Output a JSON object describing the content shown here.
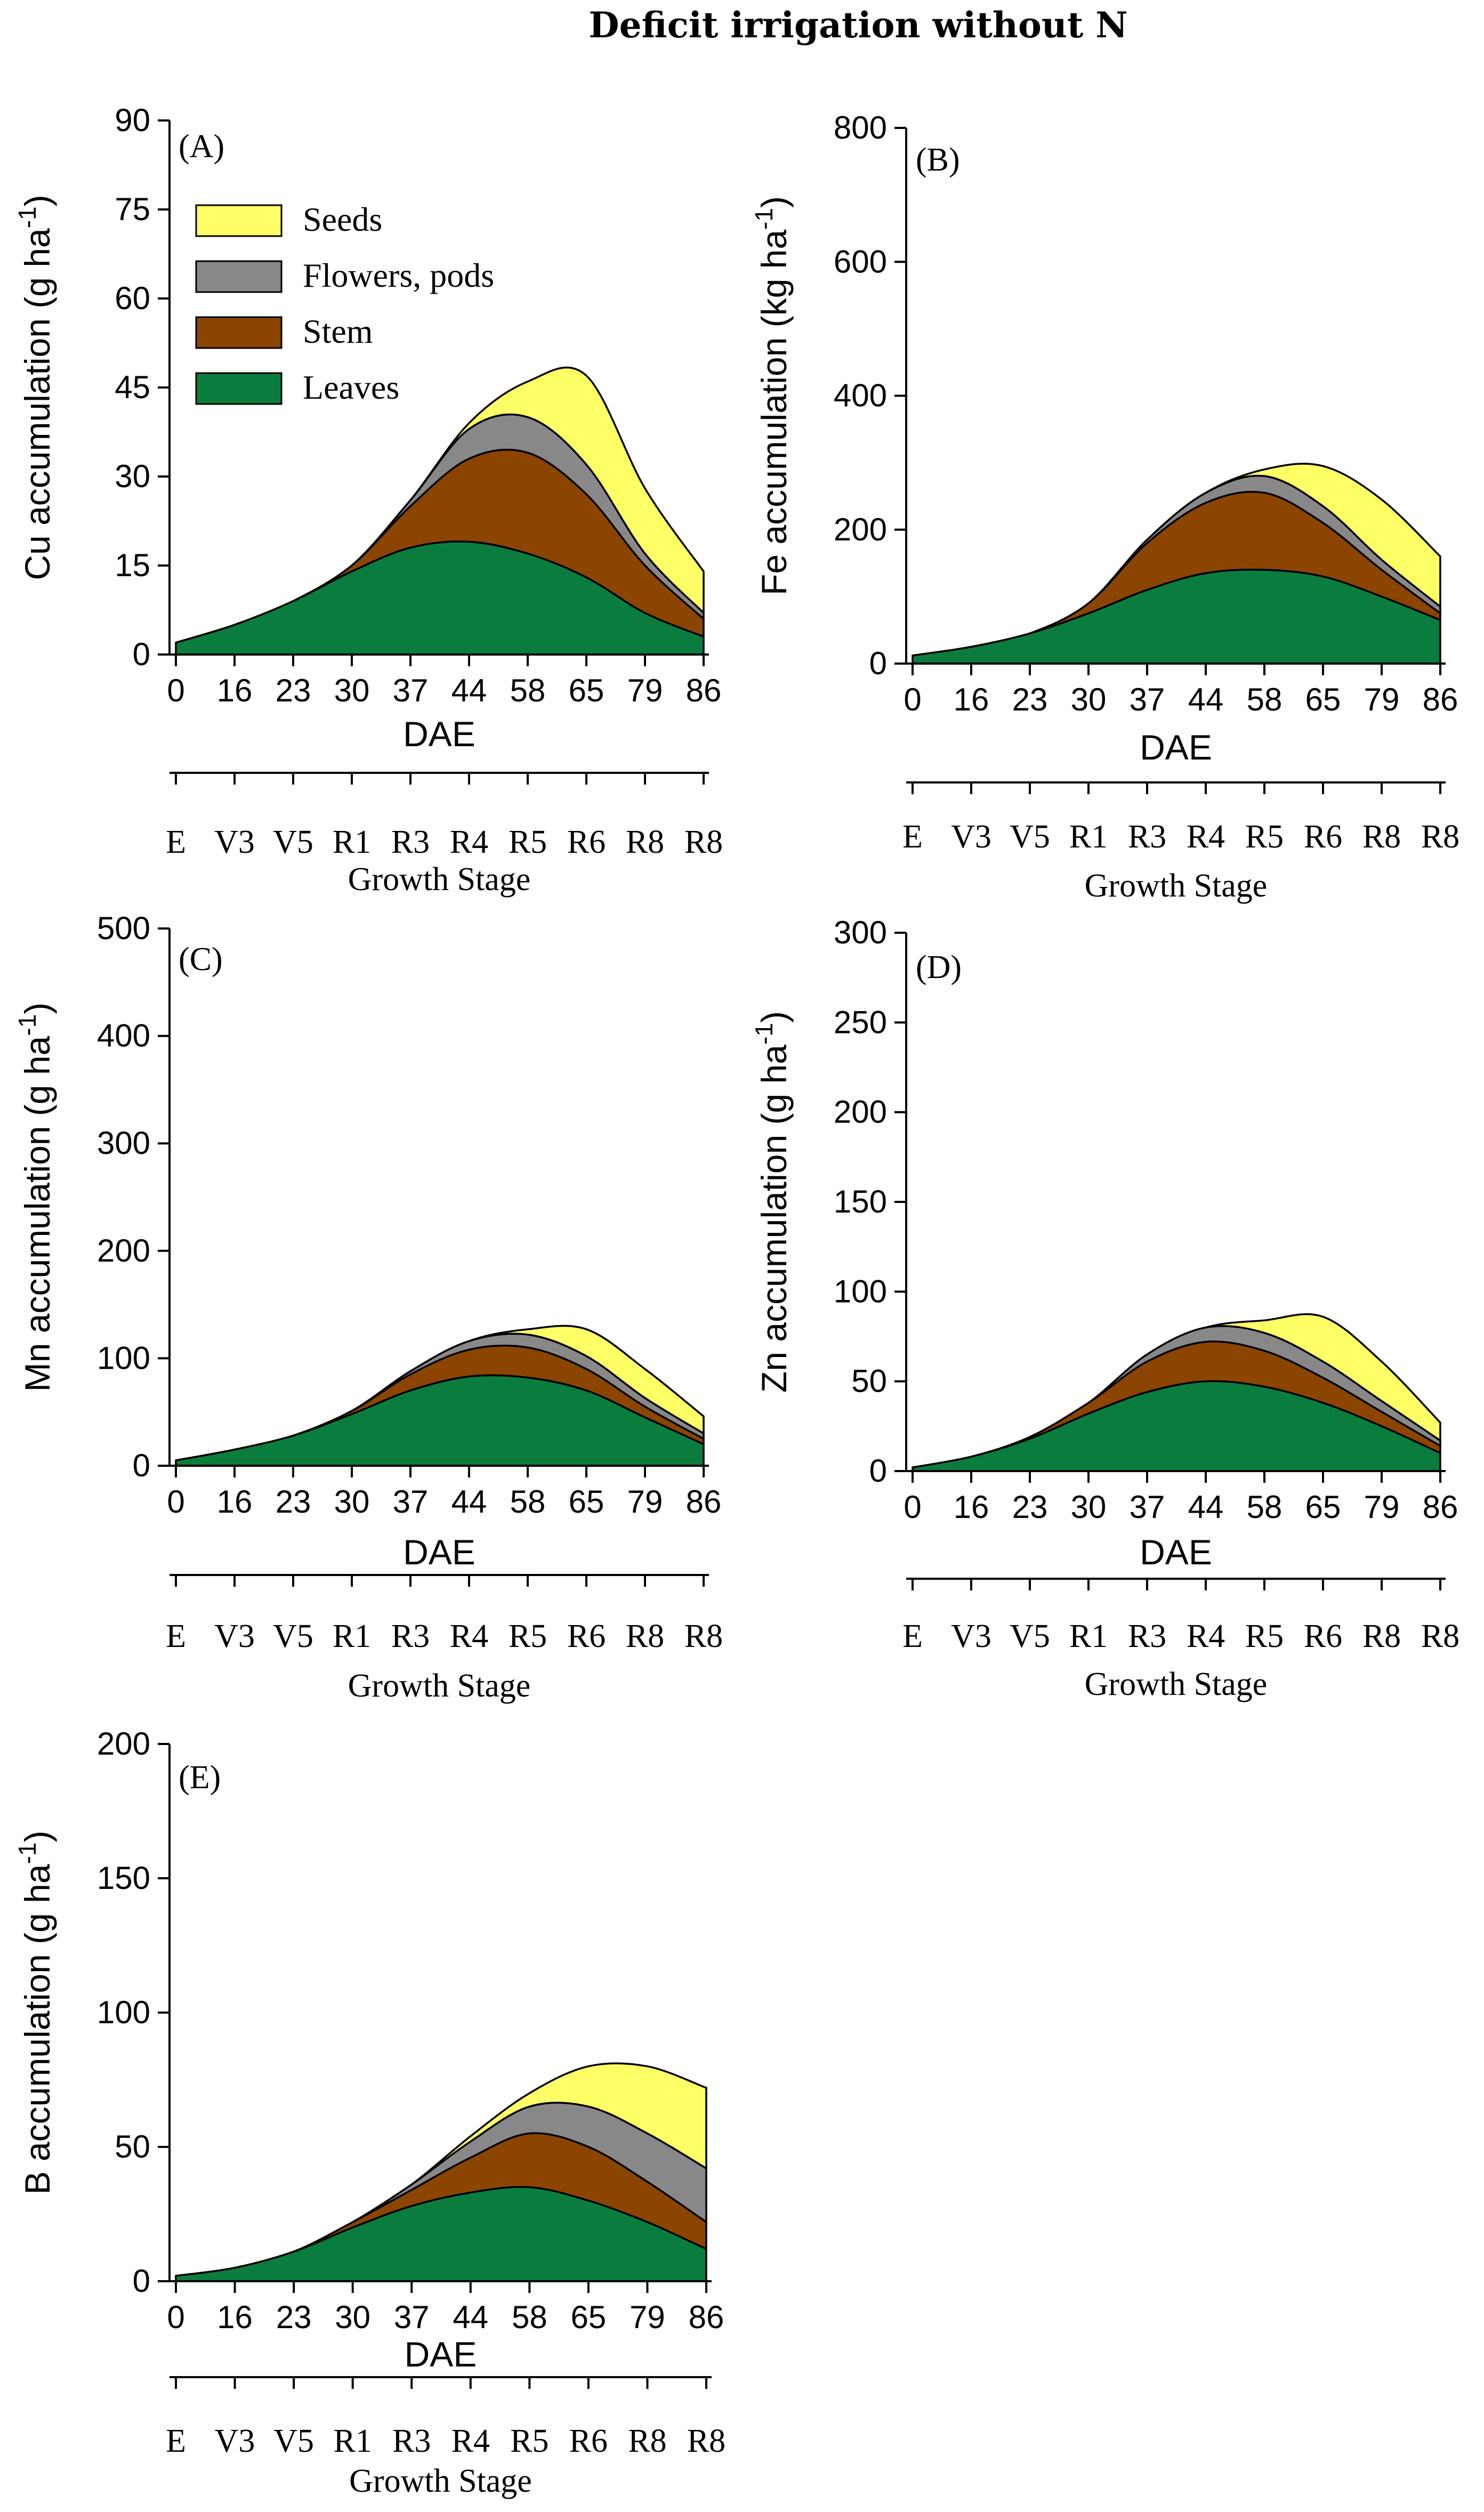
{
  "title": "Deficit irrigation without N",
  "colors": {
    "Seeds": "#ffff66",
    "Flowers, pods": "#888888",
    "Stem": "#8b4500",
    "Leaves": "#0a7d3e"
  },
  "legend": [
    "Seeds",
    "Flowers, pods",
    "Stem",
    "Leaves"
  ],
  "dae_labels": [
    "0",
    "16",
    "23",
    "30",
    "37",
    "44",
    "58",
    "65",
    "79",
    "86"
  ],
  "stage_labels": [
    "E",
    "V3",
    "V5",
    "R1",
    "R3",
    "R4",
    "R5",
    "R6",
    "R8",
    "R8"
  ],
  "xlabel": "DAE",
  "stage_axis_label": "Growth Stage",
  "chart_data": [
    {
      "id": "A",
      "panel_label": "(A)",
      "type": "area",
      "ylabel_main": "Cu accumulation (g ha",
      "ylabel_sup": "-1",
      "ylabel_close": ")",
      "ylim": [
        0,
        90
      ],
      "yticks": [
        0,
        15,
        30,
        45,
        60,
        75,
        90
      ],
      "x": [
        0,
        1,
        2,
        3,
        4,
        5,
        6,
        7,
        8,
        9
      ],
      "series": [
        {
          "name": "Leaves",
          "values": [
            2,
            5,
            9,
            14,
            18,
            19,
            17,
            13,
            7,
            3
          ]
        },
        {
          "name": "Stem",
          "values": [
            0,
            0,
            0,
            1,
            7,
            14,
            17,
            14,
            8,
            3
          ]
        },
        {
          "name": "Flowers, pods",
          "values": [
            0,
            0,
            0,
            0,
            1,
            5,
            6,
            5,
            2,
            1
          ]
        },
        {
          "name": "Seeds",
          "values": [
            0,
            0,
            0,
            0,
            0,
            1,
            6,
            15,
            11,
            7
          ]
        }
      ]
    },
    {
      "id": "B",
      "panel_label": "(B)",
      "type": "area",
      "ylabel_main": "Fe  accumulation (kg ha",
      "ylabel_sup": "-1",
      "ylabel_close": ")",
      "ylim": [
        0,
        800
      ],
      "yticks": [
        0,
        200,
        400,
        600,
        800
      ],
      "x": [
        0,
        1,
        2,
        3,
        4,
        5,
        6,
        7,
        8,
        9
      ],
      "series": [
        {
          "name": "Leaves",
          "values": [
            12,
            25,
            45,
            75,
            110,
            135,
            140,
            130,
            100,
            65
          ]
        },
        {
          "name": "Stem",
          "values": [
            0,
            0,
            0,
            15,
            70,
            105,
            115,
            80,
            40,
            10
          ]
        },
        {
          "name": "Flowers, pods",
          "values": [
            0,
            0,
            0,
            0,
            5,
            15,
            25,
            25,
            15,
            10
          ]
        },
        {
          "name": "Seeds",
          "values": [
            0,
            0,
            0,
            0,
            0,
            0,
            10,
            60,
            90,
            75
          ]
        }
      ]
    },
    {
      "id": "C",
      "panel_label": "(C)",
      "type": "area",
      "ylabel_main": "Mn  accumulation (g ha",
      "ylabel_sup": "-1",
      "ylabel_close": ")",
      "ylim": [
        0,
        500
      ],
      "yticks": [
        0,
        100,
        200,
        300,
        400,
        500
      ],
      "x": [
        0,
        1,
        2,
        3,
        4,
        5,
        6,
        7,
        8,
        9
      ],
      "series": [
        {
          "name": "Leaves",
          "values": [
            5,
            15,
            28,
            48,
            70,
            83,
            82,
            70,
            45,
            20
          ]
        },
        {
          "name": "Stem",
          "values": [
            0,
            0,
            0,
            3,
            15,
            25,
            28,
            20,
            10,
            5
          ]
        },
        {
          "name": "Flowers, pods",
          "values": [
            0,
            0,
            0,
            0,
            3,
            8,
            12,
            12,
            8,
            5
          ]
        },
        {
          "name": "Seeds",
          "values": [
            0,
            0,
            0,
            0,
            0,
            0,
            5,
            25,
            27,
            16
          ]
        }
      ]
    },
    {
      "id": "D",
      "panel_label": "(D)",
      "type": "area",
      "ylabel_main": "Zn  accumulation (g ha",
      "ylabel_sup": "-1",
      "ylabel_close": ")",
      "ylim": [
        0,
        300
      ],
      "yticks": [
        0,
        50,
        100,
        150,
        200,
        250,
        300
      ],
      "x": [
        0,
        1,
        2,
        3,
        4,
        5,
        6,
        7,
        8,
        9
      ],
      "series": [
        {
          "name": "Leaves",
          "values": [
            2,
            8,
            18,
            32,
            44,
            50,
            47,
            38,
            25,
            10
          ]
        },
        {
          "name": "Stem",
          "values": [
            0,
            0,
            1,
            6,
            17,
            22,
            20,
            14,
            8,
            4
          ]
        },
        {
          "name": "Flowers, pods",
          "values": [
            0,
            0,
            0,
            0,
            4,
            8,
            10,
            9,
            6,
            3
          ]
        },
        {
          "name": "Seeds",
          "values": [
            0,
            0,
            0,
            0,
            0,
            0,
            7,
            25,
            22,
            10
          ]
        }
      ]
    },
    {
      "id": "E",
      "panel_label": "(E)",
      "type": "area",
      "ylabel_main": "B  accumulation (g ha",
      "ylabel_sup": "-1",
      "ylabel_close": ")",
      "ylim": [
        0,
        200
      ],
      "yticks": [
        0,
        50,
        100,
        150,
        200
      ],
      "x": [
        0,
        1,
        2,
        3,
        4,
        5,
        6,
        7,
        8,
        9
      ],
      "series": [
        {
          "name": "Leaves",
          "values": [
            2,
            5,
            11,
            20,
            28,
            33,
            35,
            30,
            22,
            12
          ]
        },
        {
          "name": "Stem",
          "values": [
            0,
            0,
            0,
            2,
            6,
            13,
            20,
            20,
            15,
            10
          ]
        },
        {
          "name": "Flowers, pods",
          "values": [
            0,
            0,
            0,
            0,
            2,
            6,
            10,
            15,
            18,
            20
          ]
        },
        {
          "name": "Seeds",
          "values": [
            0,
            0,
            0,
            0,
            0,
            2,
            5,
            15,
            25,
            30
          ]
        }
      ]
    }
  ]
}
